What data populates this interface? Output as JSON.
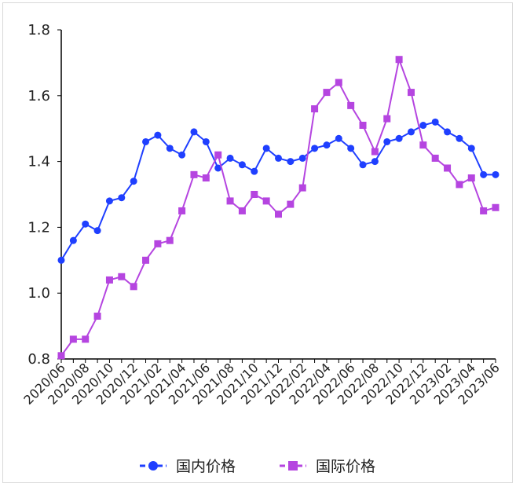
{
  "chart_data": {
    "type": "line",
    "title": "",
    "xlabel": "",
    "ylabel": "",
    "ylim": [
      0.8,
      1.8
    ],
    "yticks": [
      "0.8",
      "1.0",
      "1.2",
      "1.4",
      "1.6",
      "1.8"
    ],
    "x": [
      "2020/06",
      "2020/07",
      "2020/08",
      "2020/09",
      "2020/10",
      "2020/11",
      "2020/12",
      "2021/01",
      "2021/02",
      "2021/03",
      "2021/04",
      "2021/05",
      "2021/06",
      "2021/07",
      "2021/08",
      "2021/09",
      "2021/10",
      "2021/11",
      "2021/12",
      "2022/01",
      "2022/02",
      "2022/03",
      "2022/04",
      "2022/05",
      "2022/06",
      "2022/07",
      "2022/08",
      "2022/09",
      "2022/10",
      "2022/11",
      "2022/12",
      "2023/01",
      "2023/02",
      "2023/03",
      "2023/04",
      "2023/05",
      "2023/06"
    ],
    "xtick_labels": [
      "2020/06",
      "2020/08",
      "2020/10",
      "2020/12",
      "2021/02",
      "2021/04",
      "2021/06",
      "2021/08",
      "2021/10",
      "2021/12",
      "2022/02",
      "2022/04",
      "2022/06",
      "2022/08",
      "2022/10",
      "2022/12",
      "2023/02",
      "2023/04",
      "2023/06"
    ],
    "grid": false,
    "legend_position": "bottom",
    "series": [
      {
        "name": "国内价格",
        "color": "#1f3fff",
        "marker": "circle",
        "values": [
          1.1,
          1.16,
          1.21,
          1.19,
          1.28,
          1.29,
          1.34,
          1.46,
          1.48,
          1.44,
          1.42,
          1.49,
          1.46,
          1.38,
          1.41,
          1.39,
          1.37,
          1.44,
          1.41,
          1.4,
          1.41,
          1.44,
          1.45,
          1.47,
          1.44,
          1.39,
          1.4,
          1.46,
          1.47,
          1.49,
          1.51,
          1.52,
          1.49,
          1.47,
          1.44,
          1.36,
          1.36
        ]
      },
      {
        "name": "国际价格",
        "color": "#b545e0",
        "marker": "square",
        "values": [
          0.81,
          0.86,
          0.86,
          0.93,
          1.04,
          1.05,
          1.02,
          1.1,
          1.15,
          1.16,
          1.25,
          1.36,
          1.35,
          1.42,
          1.28,
          1.25,
          1.3,
          1.28,
          1.24,
          1.27,
          1.32,
          1.56,
          1.61,
          1.64,
          1.57,
          1.51,
          1.43,
          1.53,
          1.71,
          1.61,
          1.45,
          1.41,
          1.38,
          1.33,
          1.35,
          1.25,
          1.26
        ]
      }
    ]
  }
}
